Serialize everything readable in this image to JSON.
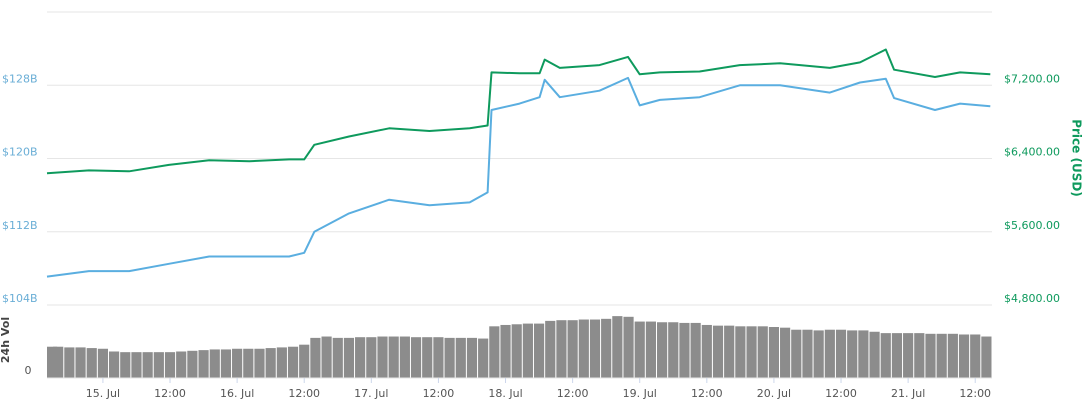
{
  "chart_data": {
    "type": "line",
    "x": [
      -10,
      -2.5,
      4.7,
      11.8,
      19,
      26.2,
      33.3,
      36,
      37.8,
      44,
      51.2,
      58.4,
      65.6,
      68.8,
      69.5,
      74.5,
      78.1,
      79,
      81.7,
      88.8,
      93.9,
      96,
      99.6,
      106.7,
      113.9,
      121.1,
      130,
      135.4,
      140,
      141.5,
      148.8,
      153.3,
      158.7
    ],
    "xlim": [
      -10,
      159
    ],
    "xticks": [
      {
        "value": 0,
        "label": "15. Jul"
      },
      {
        "value": 12,
        "label": "12:00"
      },
      {
        "value": 24,
        "label": "16. Jul"
      },
      {
        "value": 36,
        "label": "12:00"
      },
      {
        "value": 48,
        "label": "17. Jul"
      },
      {
        "value": 60,
        "label": "12:00"
      },
      {
        "value": 72,
        "label": "18. Jul"
      },
      {
        "value": 84,
        "label": "12:00"
      },
      {
        "value": 96,
        "label": "19. Jul"
      },
      {
        "value": 108,
        "label": "12:00"
      },
      {
        "value": 120,
        "label": "20. Jul"
      },
      {
        "value": 132,
        "label": "12:00"
      },
      {
        "value": 144,
        "label": "21. Jul"
      },
      {
        "value": 156,
        "label": "12:00"
      }
    ],
    "ylim": [
      104,
      136
    ],
    "yticks": [
      {
        "value": 104,
        "label": "$104B"
      },
      {
        "value": 112,
        "label": "$112B"
      },
      {
        "value": 120,
        "label": "$120B"
      },
      {
        "value": 128,
        "label": "$128B"
      }
    ],
    "y2lim": [
      4800,
      8000
    ],
    "y2ticks": [
      {
        "value": 4800,
        "label": "$4,800.00"
      },
      {
        "value": 5600,
        "label": "$5,600.00"
      },
      {
        "value": 6400,
        "label": "$6,400.00"
      },
      {
        "value": 7200,
        "label": "$7,200.00"
      }
    ],
    "y2label": "Price (USD)",
    "grid": true,
    "series": [
      {
        "color": "#5aaee0",
        "values": [
          107.1,
          107.7,
          107.7,
          108.5,
          109.3,
          109.3,
          109.3,
          109.7,
          112.0,
          114.0,
          115.5,
          114.9,
          115.2,
          116.3,
          125.3,
          126.0,
          126.7,
          128.6,
          126.7,
          127.4,
          128.8,
          125.8,
          126.4,
          126.7,
          128.0,
          128.0,
          127.2,
          128.3,
          128.7,
          126.6,
          125.3,
          126.0,
          125.7
        ]
      },
      {
        "color": "#0e9a5d",
        "axis": "y2",
        "values": [
          6240,
          6270,
          6260,
          6330,
          6380,
          6370,
          6390,
          6390,
          6550,
          6640,
          6730,
          6700,
          6730,
          6760,
          7340,
          7330,
          7330,
          7480,
          7390,
          7420,
          7510,
          7320,
          7340,
          7350,
          7420,
          7440,
          7390,
          7450,
          7590,
          7370,
          7290,
          7340,
          7320
        ]
      }
    ],
    "volume": {
      "label": "24h Vol",
      "color": "#8c8c8c",
      "ylim": [
        0,
        10
      ],
      "yticks": [
        0
      ],
      "x": [
        -10,
        -8,
        -6,
        -4,
        -2,
        0,
        2,
        4,
        6,
        8,
        10,
        12,
        14,
        16,
        18,
        20,
        22,
        24,
        26,
        28,
        30,
        32,
        34,
        36,
        38,
        40,
        42,
        44,
        46,
        48,
        50,
        52,
        54,
        56,
        58,
        60,
        62,
        64,
        66,
        68,
        70,
        72,
        74,
        76,
        78,
        80,
        82,
        84,
        86,
        88,
        90,
        92,
        94,
        96,
        98,
        100,
        102,
        104,
        106,
        108,
        110,
        112,
        114,
        116,
        118,
        120,
        122,
        124,
        126,
        128,
        130,
        132,
        134,
        136,
        138,
        140,
        142,
        144,
        146,
        148,
        150,
        152,
        154,
        156,
        158
      ],
      "values": [
        4.6,
        4.6,
        4.5,
        4.5,
        4.4,
        4.3,
        3.9,
        3.8,
        3.8,
        3.8,
        3.8,
        3.8,
        3.9,
        4.0,
        4.1,
        4.2,
        4.2,
        4.3,
        4.3,
        4.3,
        4.4,
        4.5,
        4.6,
        4.9,
        5.9,
        6.1,
        5.9,
        5.9,
        6.0,
        6.0,
        6.1,
        6.1,
        6.1,
        6.0,
        6.0,
        6.0,
        5.9,
        5.9,
        5.9,
        5.8,
        7.6,
        7.8,
        7.9,
        8.0,
        8.0,
        8.4,
        8.5,
        8.5,
        8.6,
        8.6,
        8.7,
        9.1,
        9.0,
        8.3,
        8.3,
        8.2,
        8.2,
        8.1,
        8.1,
        7.8,
        7.7,
        7.7,
        7.6,
        7.6,
        7.6,
        7.5,
        7.4,
        7.1,
        7.1,
        7.0,
        7.1,
        7.1,
        7.0,
        7.0,
        6.8,
        6.6,
        6.6,
        6.6,
        6.6,
        6.5,
        6.5,
        6.5,
        6.4,
        6.4,
        6.1
      ]
    }
  }
}
